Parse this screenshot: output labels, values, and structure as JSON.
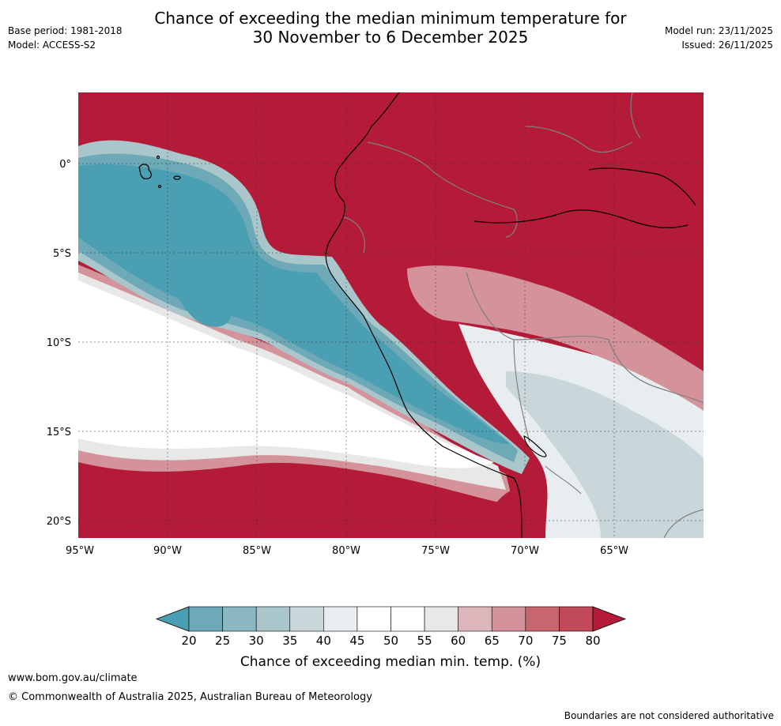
{
  "header": {
    "base_period": "Base period: 1981-2018",
    "model": "Model: ACCESS-S2",
    "title_line1": "Chance of exceeding the median minimum temperature for",
    "title_line2": "30 November to 6 December 2025",
    "model_run": "Model run: 23/11/2025",
    "issued": "Issued: 26/11/2025"
  },
  "map": {
    "lat_labels": [
      "0°",
      "5°S",
      "10°S",
      "15°S",
      "20°S"
    ],
    "lon_labels": [
      "95°W",
      "90°W",
      "85°W",
      "80°W",
      "75°W",
      "70°W",
      "65°W"
    ]
  },
  "colorbar": {
    "ticks": [
      "20",
      "25",
      "30",
      "35",
      "40",
      "45",
      "50",
      "55",
      "60",
      "65",
      "70",
      "75",
      "80"
    ],
    "colors": [
      "#4a9fb3",
      "#6da9b6",
      "#8ab7c2",
      "#a9c6cb",
      "#c9d7db",
      "#e8eef0",
      "#ffffff",
      "#ffffff",
      "#e8e8e8",
      "#ddb6bb",
      "#d4939b",
      "#c86670",
      "#c0495a",
      "#b31b39"
    ],
    "title": "Chance of exceeding median min. temp. (%)"
  },
  "footer": {
    "url": "www.bom.gov.au/climate",
    "copyright": "© Commonwealth of Australia 2025, Australian Bureau of Meteorology",
    "note": "Boundaries are not considered authoritative"
  }
}
